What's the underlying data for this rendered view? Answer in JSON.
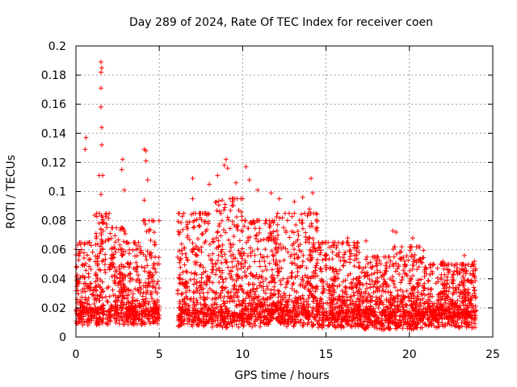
{
  "chart_data": {
    "type": "scatter",
    "title": "Day 289 of 2024, Rate Of TEC Index for receiver coen",
    "xlabel": "GPS time / hours",
    "ylabel": "ROTI / TECUs",
    "xlim": [
      0,
      25
    ],
    "ylim": [
      0,
      0.2
    ],
    "x_ticks": [
      "0",
      "5",
      "10",
      "15",
      "20",
      "25"
    ],
    "y_ticks": [
      "0",
      "0.02",
      "0.04",
      "0.06",
      "0.08",
      "0.1",
      "0.12",
      "0.14",
      "0.16",
      "0.18",
      "0.2"
    ],
    "grid": true,
    "marker": "+",
    "series_color": "#ff0000",
    "data_gap_hours": [
      5.0,
      6.1
    ],
    "peak_points": [
      {
        "x": 0.6,
        "y": 0.137
      },
      {
        "x": 0.55,
        "y": 0.129
      },
      {
        "x": 1.4,
        "y": 0.111
      },
      {
        "x": 1.5,
        "y": 0.189
      },
      {
        "x": 1.55,
        "y": 0.185
      },
      {
        "x": 1.5,
        "y": 0.182
      },
      {
        "x": 1.5,
        "y": 0.171
      },
      {
        "x": 1.5,
        "y": 0.158
      },
      {
        "x": 1.55,
        "y": 0.144
      },
      {
        "x": 1.55,
        "y": 0.132
      },
      {
        "x": 1.6,
        "y": 0.111
      },
      {
        "x": 1.5,
        "y": 0.098
      },
      {
        "x": 2.8,
        "y": 0.122
      },
      {
        "x": 2.75,
        "y": 0.115
      },
      {
        "x": 2.9,
        "y": 0.101
      },
      {
        "x": 4.1,
        "y": 0.129
      },
      {
        "x": 4.2,
        "y": 0.128
      },
      {
        "x": 4.2,
        "y": 0.121
      },
      {
        "x": 4.3,
        "y": 0.108
      },
      {
        "x": 4.1,
        "y": 0.094
      },
      {
        "x": 7.0,
        "y": 0.109
      },
      {
        "x": 7.0,
        "y": 0.095
      },
      {
        "x": 8.0,
        "y": 0.105
      },
      {
        "x": 8.5,
        "y": 0.111
      },
      {
        "x": 8.9,
        "y": 0.118
      },
      {
        "x": 9.0,
        "y": 0.122
      },
      {
        "x": 9.1,
        "y": 0.116
      },
      {
        "x": 9.6,
        "y": 0.106
      },
      {
        "x": 10.2,
        "y": 0.117
      },
      {
        "x": 10.4,
        "y": 0.108
      },
      {
        "x": 10.9,
        "y": 0.101
      },
      {
        "x": 11.7,
        "y": 0.099
      },
      {
        "x": 12.2,
        "y": 0.095
      },
      {
        "x": 13.1,
        "y": 0.093
      },
      {
        "x": 13.6,
        "y": 0.096
      },
      {
        "x": 14.1,
        "y": 0.109
      },
      {
        "x": 14.2,
        "y": 0.099
      },
      {
        "x": 14.0,
        "y": 0.088
      },
      {
        "x": 16.3,
        "y": 0.068
      },
      {
        "x": 17.4,
        "y": 0.066
      },
      {
        "x": 19.0,
        "y": 0.073
      },
      {
        "x": 19.2,
        "y": 0.072
      },
      {
        "x": 20.2,
        "y": 0.068
      },
      {
        "x": 22.0,
        "y": 0.052
      },
      {
        "x": 23.3,
        "y": 0.056
      },
      {
        "x": 23.9,
        "y": 0.052
      }
    ],
    "bulk_profile": [
      {
        "hours": [
          0,
          1
        ],
        "low": 0.008,
        "high": 0.065
      },
      {
        "hours": [
          1,
          2
        ],
        "low": 0.008,
        "high": 0.085
      },
      {
        "hours": [
          2,
          3
        ],
        "low": 0.008,
        "high": 0.075
      },
      {
        "hours": [
          3,
          4
        ],
        "low": 0.008,
        "high": 0.065
      },
      {
        "hours": [
          4,
          5
        ],
        "low": 0.008,
        "high": 0.08
      },
      {
        "hours": [
          6.1,
          8
        ],
        "low": 0.007,
        "high": 0.085
      },
      {
        "hours": [
          8,
          10
        ],
        "low": 0.006,
        "high": 0.095
      },
      {
        "hours": [
          10,
          12
        ],
        "low": 0.007,
        "high": 0.08
      },
      {
        "hours": [
          12,
          14.5
        ],
        "low": 0.007,
        "high": 0.085
      },
      {
        "hours": [
          14.5,
          17
        ],
        "low": 0.006,
        "high": 0.065
      },
      {
        "hours": [
          17,
          19
        ],
        "low": 0.005,
        "high": 0.055
      },
      {
        "hours": [
          19,
          21
        ],
        "low": 0.005,
        "high": 0.062
      },
      {
        "hours": [
          21,
          24
        ],
        "low": 0.006,
        "high": 0.05
      }
    ]
  }
}
